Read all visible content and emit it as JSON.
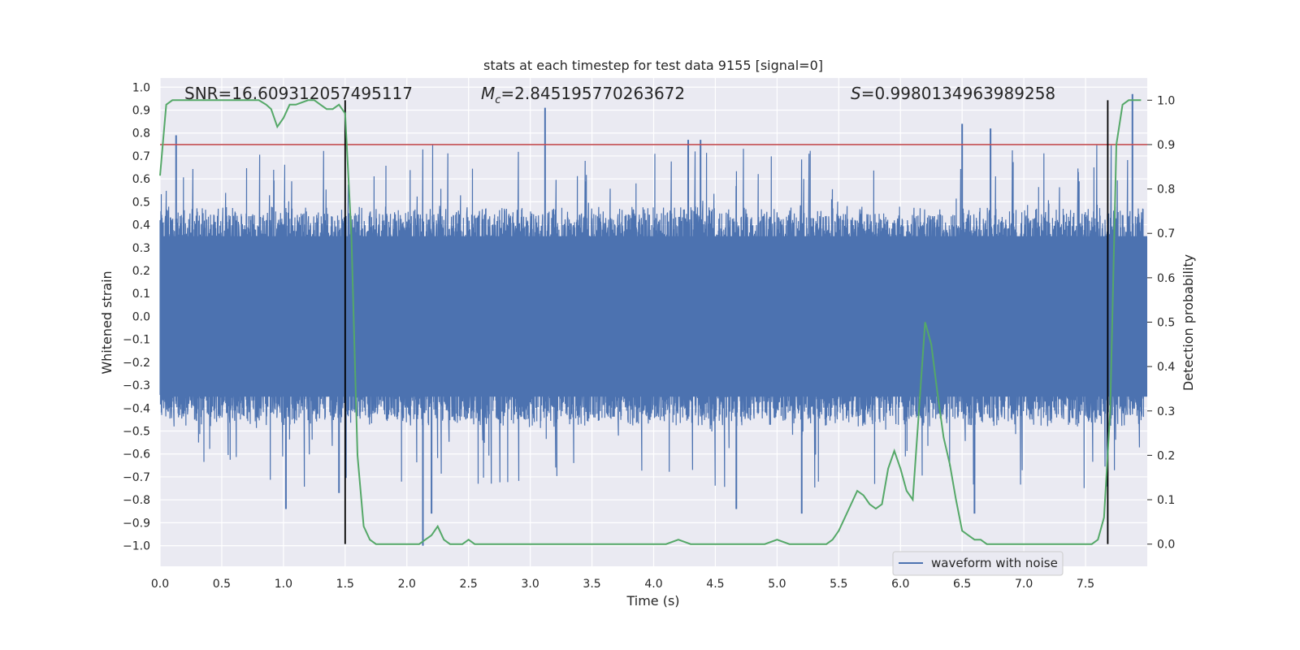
{
  "chart_data": {
    "type": "line",
    "title": "stats at each timestep for test data 9155 [signal=0]",
    "xlabel": "Time (s)",
    "ylabel_left": "Whitened strain",
    "ylabel_right": "Detection probability",
    "xlim": [
      0.0,
      8.0
    ],
    "ylim_left": [
      -1.09,
      1.04
    ],
    "ylim_right": [
      -0.05,
      1.05
    ],
    "x_ticks": [
      "0.0",
      "0.5",
      "1.0",
      "1.5",
      "2.0",
      "2.5",
      "3.0",
      "3.5",
      "4.0",
      "4.5",
      "5.0",
      "5.5",
      "6.0",
      "6.5",
      "7.0",
      "7.5"
    ],
    "y_left_ticks": [
      "1.0",
      "0.9",
      "0.8",
      "0.7",
      "0.6",
      "0.5",
      "0.4",
      "0.3",
      "0.2",
      "0.1",
      "0.0",
      "-0.1",
      "-0.2",
      "-0.3",
      "-0.4",
      "-0.5",
      "-0.6",
      "-0.7",
      "-0.8",
      "-0.9",
      "-1.0"
    ],
    "y_right_ticks": [
      "0.0",
      "0.1",
      "0.2",
      "0.3",
      "0.4",
      "0.5",
      "0.6",
      "0.7",
      "0.8",
      "0.9",
      "1.0"
    ],
    "grid": true,
    "legend_position": "lower-right",
    "annotations": {
      "snr": "SNR=16.609312057495117",
      "mc_symbol": "M",
      "mc_subscript": "c",
      "mc_value": "=2.845195770263672",
      "s_symbol": "S",
      "s_value": "=0.9980134963989258"
    },
    "threshold_line": {
      "y": 0.9,
      "axis": "right",
      "color": "#c44e52"
    },
    "vertical_markers": [
      1.5,
      7.68
    ],
    "series": [
      {
        "name": "waveform with noise",
        "axis": "left",
        "color": "#4c72b0",
        "envelope_description_range": [
          -1.0,
          1.0
        ],
        "typical_abs_amplitude": 0.4,
        "notable_peaks": [
          {
            "x": 0.13,
            "y": 0.79
          },
          {
            "x": 1.02,
            "y": -0.84
          },
          {
            "x": 1.45,
            "y": -0.77
          },
          {
            "x": 2.13,
            "y": -1.0
          },
          {
            "x": 2.2,
            "y": -0.86
          },
          {
            "x": 3.12,
            "y": 0.91
          },
          {
            "x": 4.28,
            "y": 0.77
          },
          {
            "x": 4.38,
            "y": 0.77
          },
          {
            "x": 4.67,
            "y": -0.84
          },
          {
            "x": 5.2,
            "y": -0.86
          },
          {
            "x": 6.5,
            "y": 0.84
          },
          {
            "x": 6.73,
            "y": 0.82
          },
          {
            "x": 6.6,
            "y": -0.86
          },
          {
            "x": 7.88,
            "y": 0.97
          }
        ]
      },
      {
        "name": "",
        "axis": "right",
        "color": "#55a868",
        "x": [
          0.0,
          0.05,
          0.1,
          0.15,
          0.2,
          0.3,
          0.4,
          0.5,
          0.6,
          0.7,
          0.8,
          0.86,
          0.9,
          0.95,
          1.0,
          1.05,
          1.1,
          1.2,
          1.25,
          1.3,
          1.35,
          1.4,
          1.45,
          1.5,
          1.55,
          1.6,
          1.65,
          1.7,
          1.75,
          1.8,
          1.9,
          2.0,
          2.1,
          2.15,
          2.2,
          2.25,
          2.3,
          2.35,
          2.4,
          2.45,
          2.5,
          2.55,
          2.6,
          2.7,
          2.8,
          3.0,
          3.2,
          3.4,
          3.6,
          3.8,
          4.0,
          4.1,
          4.2,
          4.3,
          4.5,
          4.7,
          4.9,
          5.0,
          5.1,
          5.2,
          5.3,
          5.4,
          5.45,
          5.5,
          5.55,
          5.6,
          5.65,
          5.7,
          5.75,
          5.8,
          5.85,
          5.9,
          5.95,
          6.0,
          6.05,
          6.1,
          6.15,
          6.2,
          6.25,
          6.3,
          6.35,
          6.4,
          6.45,
          6.5,
          6.55,
          6.6,
          6.65,
          6.7,
          6.8,
          6.9,
          7.0,
          7.1,
          7.2,
          7.3,
          7.4,
          7.45,
          7.5,
          7.55,
          7.6,
          7.65,
          7.7,
          7.75,
          7.8,
          7.85,
          7.9,
          7.95
        ],
        "values": [
          0.83,
          0.99,
          1.0,
          1.0,
          1.0,
          1.0,
          1.0,
          1.0,
          1.0,
          1.0,
          1.0,
          0.99,
          0.98,
          0.94,
          0.96,
          0.99,
          0.99,
          1.0,
          1.0,
          0.99,
          0.98,
          0.98,
          0.99,
          0.97,
          0.7,
          0.2,
          0.04,
          0.01,
          0.0,
          0.0,
          0.0,
          0.0,
          0.0,
          0.01,
          0.02,
          0.04,
          0.01,
          0.0,
          0.0,
          0.0,
          0.01,
          0.0,
          0.0,
          0.0,
          0.0,
          0.0,
          0.0,
          0.0,
          0.0,
          0.0,
          0.0,
          0.0,
          0.01,
          0.0,
          0.0,
          0.0,
          0.0,
          0.01,
          0.0,
          0.0,
          0.0,
          0.0,
          0.01,
          0.03,
          0.06,
          0.09,
          0.12,
          0.11,
          0.09,
          0.08,
          0.09,
          0.17,
          0.21,
          0.17,
          0.12,
          0.1,
          0.3,
          0.5,
          0.45,
          0.34,
          0.24,
          0.18,
          0.1,
          0.03,
          0.02,
          0.01,
          0.01,
          0.0,
          0.0,
          0.0,
          0.0,
          0.0,
          0.0,
          0.0,
          0.0,
          0.0,
          0.0,
          0.0,
          0.01,
          0.06,
          0.3,
          0.9,
          0.99,
          1.0,
          1.0,
          1.0
        ]
      }
    ]
  },
  "legend": {
    "label": "waveform with noise"
  }
}
